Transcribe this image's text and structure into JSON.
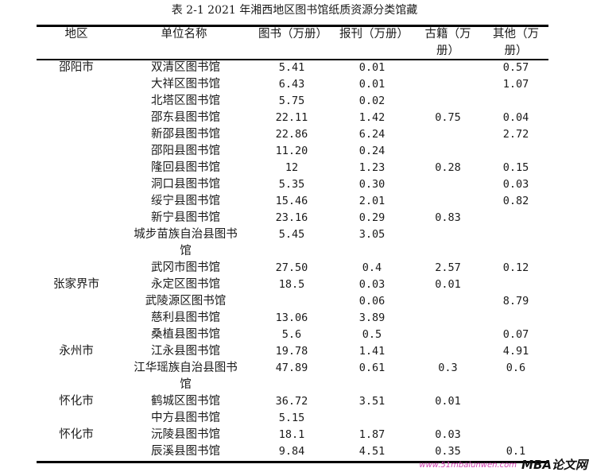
{
  "title": "表 2-1 2021 年湘西地区图书馆纸质资源分类馆藏",
  "headers": [
    "地区",
    "单位名称",
    "图书（万册）",
    "报刊（万册）",
    "古籍（万册）",
    "其他（万册）"
  ],
  "rows": [
    {
      "region": "邵阳市",
      "name": "双清区图书馆",
      "books": "5.41",
      "papers": "0.01",
      "ancient": "",
      "other": "0.57"
    },
    {
      "region": "",
      "name": "大祥区图书馆",
      "books": "6.43",
      "papers": "0.01",
      "ancient": "",
      "other": "1.07"
    },
    {
      "region": "",
      "name": "北塔区图书馆",
      "books": "5.75",
      "papers": "0.02",
      "ancient": "",
      "other": ""
    },
    {
      "region": "",
      "name": "邵东县图书馆",
      "books": "22.11",
      "papers": "1.42",
      "ancient": "0.75",
      "other": "0.04"
    },
    {
      "region": "",
      "name": "新邵县图书馆",
      "books": "22.86",
      "papers": "6.24",
      "ancient": "",
      "other": "2.72"
    },
    {
      "region": "",
      "name": "邵阳县图书馆",
      "books": "11.20",
      "papers": "0.24",
      "ancient": "",
      "other": ""
    },
    {
      "region": "",
      "name": "隆回县图书馆",
      "books": "12",
      "papers": "1.23",
      "ancient": "0.28",
      "other": "0.15"
    },
    {
      "region": "",
      "name": "洞口县图书馆",
      "books": "5.35",
      "papers": "0.30",
      "ancient": "",
      "other": "0.03"
    },
    {
      "region": "",
      "name": "绥宁县图书馆",
      "books": "15.46",
      "papers": "2.01",
      "ancient": "",
      "other": "0.82"
    },
    {
      "region": "",
      "name": "新宁县图书馆",
      "books": "23.16",
      "papers": "0.29",
      "ancient": "0.83",
      "other": ""
    },
    {
      "region": "",
      "name": "城步苗族自治县图书馆",
      "books": "5.45",
      "papers": "3.05",
      "ancient": "",
      "other": ""
    },
    {
      "region": "",
      "name": "武冈市图书馆",
      "books": "27.50",
      "papers": "0.4",
      "ancient": "2.57",
      "other": "0.12"
    },
    {
      "region": "张家界市",
      "name": "永定区图书馆",
      "books": "18.5",
      "papers": "0.03",
      "ancient": "0.01",
      "other": ""
    },
    {
      "region": "",
      "name": "武陵源区图书馆",
      "books": "",
      "papers": "0.06",
      "ancient": "",
      "other": "8.79"
    },
    {
      "region": "",
      "name": "慈利县图书馆",
      "books": "13.06",
      "papers": "3.89",
      "ancient": "",
      "other": ""
    },
    {
      "region": "",
      "name": "桑植县图书馆",
      "books": "5.6",
      "papers": "0.5",
      "ancient": "",
      "other": "0.07"
    },
    {
      "region": "永州市",
      "name": "江永县图书馆",
      "books": "19.78",
      "papers": "1.41",
      "ancient": "",
      "other": "4.91"
    },
    {
      "region": "",
      "name": "江华瑶族自治县图书馆",
      "books": "47.89",
      "papers": "0.61",
      "ancient": "0.3",
      "other": "0.6"
    },
    {
      "region": "怀化市",
      "name": "鹤城区图书馆",
      "books": "36.72",
      "papers": "3.51",
      "ancient": "0.01",
      "other": ""
    },
    {
      "region": "",
      "name": "中方县图书馆",
      "books": "5.15",
      "papers": "",
      "ancient": "",
      "other": ""
    },
    {
      "region": "怀化市",
      "name": "沅陵县图书馆",
      "books": "18.1",
      "papers": "1.87",
      "ancient": "0.03",
      "other": ""
    },
    {
      "region": "",
      "name": "辰溪县图书馆",
      "books": "9.84",
      "papers": "4.51",
      "ancient": "0.35",
      "other": "0.1"
    }
  ],
  "watermark": {
    "logo": "MBA论文网",
    "url": "www.51mbalunwen.com"
  }
}
